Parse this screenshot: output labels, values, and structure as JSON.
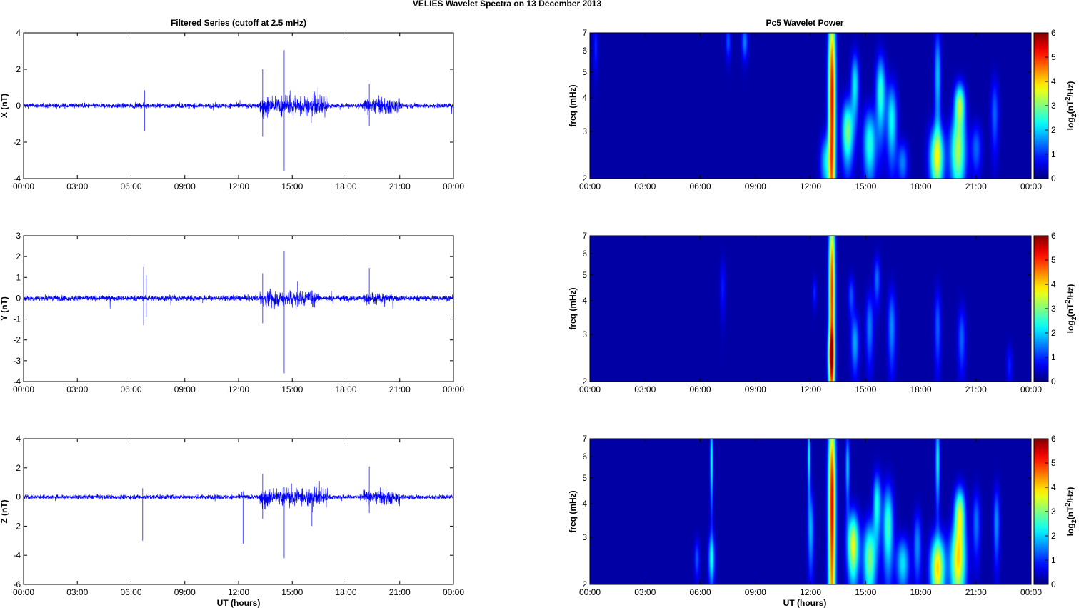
{
  "figure_title": "VELIES Wavelet Spectra on 13 December  2013",
  "left_title": "Filtered Series (cutoff at 2.5 mHz)",
  "right_title": "Pc5 Wavelet Power",
  "x_label": "UT (hours)",
  "x_tick_labels": [
    "00:00",
    "03:00",
    "06:00",
    "09:00",
    "12:00",
    "15:00",
    "18:00",
    "21:00",
    "00:00"
  ],
  "chart_data": [
    {
      "type": "line",
      "ylabel": "X (nT)",
      "xlim": [
        0,
        24
      ],
      "ylim": [
        -4,
        4
      ],
      "yticks": [
        -4,
        -2,
        0,
        2,
        4
      ],
      "color": "#0000ff",
      "noise_amplitude": 0.12,
      "spikes": [
        {
          "x": 6.75,
          "max": 0.85,
          "min": -1.4
        },
        {
          "x": 13.35,
          "max": 2.0,
          "min": -1.7
        },
        {
          "x": 14.55,
          "max": 3.05,
          "min": -3.6
        },
        {
          "x": 19.3,
          "max": 1.2,
          "min": -1.1
        }
      ],
      "active_bursts": [
        {
          "start": 13.2,
          "end": 17.0,
          "amplitude": 0.45
        },
        {
          "start": 19.0,
          "end": 21.0,
          "amplitude": 0.35
        }
      ]
    },
    {
      "type": "line",
      "ylabel": "Y (nT)",
      "xlim": [
        0,
        24
      ],
      "ylim": [
        -4,
        3
      ],
      "yticks": [
        -4,
        -3,
        -2,
        -1,
        0,
        1,
        2,
        3
      ],
      "color": "#0000ff",
      "noise_amplitude": 0.12,
      "spikes": [
        {
          "x": 6.7,
          "max": 1.5,
          "min": -1.3
        },
        {
          "x": 6.85,
          "max": 1.1,
          "min": -0.9
        },
        {
          "x": 13.35,
          "max": 1.2,
          "min": -1.2
        },
        {
          "x": 14.55,
          "max": 2.25,
          "min": -3.6
        },
        {
          "x": 15.3,
          "max": 0.8,
          "min": -0.4
        },
        {
          "x": 19.3,
          "max": 1.45,
          "min": -0.3
        }
      ],
      "active_bursts": [
        {
          "start": 13.2,
          "end": 16.5,
          "amplitude": 0.3
        },
        {
          "start": 19.0,
          "end": 20.5,
          "amplitude": 0.25
        }
      ]
    },
    {
      "type": "line",
      "ylabel": "Z (nT)",
      "xlim": [
        0,
        24
      ],
      "ylim": [
        -6,
        4
      ],
      "yticks": [
        -6,
        -4,
        -2,
        0,
        2,
        4
      ],
      "color": "#0000ff",
      "noise_amplitude": 0.14,
      "spikes": [
        {
          "x": 6.65,
          "max": 0.6,
          "min": -3.0
        },
        {
          "x": 12.25,
          "max": 0.4,
          "min": -3.2
        },
        {
          "x": 13.35,
          "max": 1.6,
          "min": -1.5
        },
        {
          "x": 14.55,
          "max": 0.7,
          "min": -4.2
        },
        {
          "x": 16.1,
          "max": 0.3,
          "min": -2.0
        },
        {
          "x": 19.3,
          "max": 2.1,
          "min": -1.1
        }
      ],
      "active_bursts": [
        {
          "start": 13.2,
          "end": 17.0,
          "amplitude": 0.5
        },
        {
          "start": 19.0,
          "end": 21.0,
          "amplitude": 0.4
        }
      ]
    },
    {
      "type": "heatmap",
      "ylabel": "freq (mHz)",
      "xlim": [
        0,
        24
      ],
      "ylim": [
        2,
        7
      ],
      "yscale": "log",
      "yticks": [
        2,
        3,
        4,
        5,
        6,
        7
      ],
      "colormap": "jet",
      "clim": [
        0,
        6
      ],
      "colorbar_label": "log2(nT^2/Hz)",
      "colorbar_ticks": [
        0,
        1,
        2,
        3,
        4,
        5,
        6
      ],
      "blobs": [
        {
          "t": 0.3,
          "f": 6.2,
          "w": 0.08,
          "h": 1.0,
          "v": 0.9
        },
        {
          "t": 7.5,
          "f": 6.5,
          "w": 0.1,
          "h": 0.7,
          "v": 1.2
        },
        {
          "t": 8.4,
          "f": 6.5,
          "w": 0.12,
          "h": 0.7,
          "v": 1.5
        },
        {
          "t": 13.15,
          "f": 4.0,
          "w": 0.14,
          "h": 3.2,
          "v": 5.8
        },
        {
          "t": 12.8,
          "f": 2.3,
          "w": 0.2,
          "h": 0.4,
          "v": 2.0
        },
        {
          "t": 14.0,
          "f": 3.0,
          "w": 0.22,
          "h": 0.6,
          "v": 3.2
        },
        {
          "t": 14.4,
          "f": 4.5,
          "w": 0.15,
          "h": 0.9,
          "v": 2.3
        },
        {
          "t": 15.2,
          "f": 2.7,
          "w": 0.25,
          "h": 0.6,
          "v": 2.6
        },
        {
          "t": 15.8,
          "f": 4.2,
          "w": 0.18,
          "h": 1.0,
          "v": 2.7
        },
        {
          "t": 16.4,
          "f": 3.3,
          "w": 0.2,
          "h": 0.8,
          "v": 2.4
        },
        {
          "t": 17.0,
          "f": 2.3,
          "w": 0.2,
          "h": 0.3,
          "v": 1.5
        },
        {
          "t": 18.85,
          "f": 2.4,
          "w": 0.28,
          "h": 0.5,
          "v": 3.6
        },
        {
          "t": 18.9,
          "f": 4.8,
          "w": 0.12,
          "h": 1.5,
          "v": 2.0
        },
        {
          "t": 20.0,
          "f": 2.5,
          "w": 0.3,
          "h": 0.6,
          "v": 3.4
        },
        {
          "t": 20.1,
          "f": 3.8,
          "w": 0.2,
          "h": 0.5,
          "v": 3.4
        },
        {
          "t": 21.0,
          "f": 2.6,
          "w": 0.2,
          "h": 0.4,
          "v": 1.3
        },
        {
          "t": 22.0,
          "f": 3.5,
          "w": 0.15,
          "h": 0.8,
          "v": 1.3
        }
      ]
    },
    {
      "type": "heatmap",
      "ylabel": "freq (mHz)",
      "xlim": [
        0,
        24
      ],
      "ylim": [
        2,
        7
      ],
      "yscale": "log",
      "yticks": [
        2,
        3,
        4,
        5,
        6,
        7
      ],
      "colormap": "jet",
      "clim": [
        0,
        6
      ],
      "colorbar_label": "log2(nT^2/Hz)",
      "colorbar_ticks": [
        0,
        1,
        2,
        3,
        4,
        5,
        6
      ],
      "blobs": [
        {
          "t": 7.2,
          "f": 4.5,
          "w": 0.1,
          "h": 0.8,
          "v": 0.8
        },
        {
          "t": 12.2,
          "f": 4.3,
          "w": 0.08,
          "h": 0.4,
          "v": 0.9
        },
        {
          "t": 13.15,
          "f": 4.3,
          "w": 0.12,
          "h": 3.0,
          "v": 5.5
        },
        {
          "t": 13.1,
          "f": 2.5,
          "w": 0.12,
          "h": 0.4,
          "v": 2.8
        },
        {
          "t": 14.4,
          "f": 2.8,
          "w": 0.15,
          "h": 0.5,
          "v": 1.8
        },
        {
          "t": 14.2,
          "f": 4.2,
          "w": 0.12,
          "h": 0.5,
          "v": 1.2
        },
        {
          "t": 15.2,
          "f": 3.2,
          "w": 0.15,
          "h": 0.7,
          "v": 1.5
        },
        {
          "t": 15.6,
          "f": 4.8,
          "w": 0.12,
          "h": 0.7,
          "v": 1.4
        },
        {
          "t": 16.4,
          "f": 3.2,
          "w": 0.15,
          "h": 0.8,
          "v": 1.6
        },
        {
          "t": 18.9,
          "f": 3.2,
          "w": 0.12,
          "h": 0.8,
          "v": 1.3
        },
        {
          "t": 20.2,
          "f": 2.9,
          "w": 0.15,
          "h": 0.6,
          "v": 1.3
        },
        {
          "t": 22.8,
          "f": 2.3,
          "w": 0.12,
          "h": 0.3,
          "v": 0.8
        }
      ]
    },
    {
      "type": "heatmap",
      "ylabel": "freq (mHz)",
      "xlim": [
        0,
        24
      ],
      "ylim": [
        2,
        7
      ],
      "yscale": "log",
      "yticks": [
        2,
        3,
        4,
        5,
        6,
        7
      ],
      "colormap": "jet",
      "clim": [
        0,
        6
      ],
      "colorbar_label": "log2(nT^2/Hz)",
      "colorbar_ticks": [
        0,
        1,
        2,
        3,
        4,
        5,
        6
      ],
      "blobs": [
        {
          "t": 6.6,
          "f": 2.5,
          "w": 0.12,
          "h": 0.4,
          "v": 2.3
        },
        {
          "t": 6.6,
          "f": 5.8,
          "w": 0.06,
          "h": 1.5,
          "v": 2.5
        },
        {
          "t": 5.8,
          "f": 2.5,
          "w": 0.1,
          "h": 0.3,
          "v": 1.2
        },
        {
          "t": 12.0,
          "f": 3.2,
          "w": 0.12,
          "h": 0.8,
          "v": 1.8
        },
        {
          "t": 11.9,
          "f": 6.0,
          "w": 0.06,
          "h": 1.3,
          "v": 2.4
        },
        {
          "t": 13.15,
          "f": 4.0,
          "w": 0.14,
          "h": 3.2,
          "v": 5.9
        },
        {
          "t": 14.3,
          "f": 2.8,
          "w": 0.22,
          "h": 0.6,
          "v": 4.0
        },
        {
          "t": 14.0,
          "f": 5.5,
          "w": 0.08,
          "h": 1.2,
          "v": 2.0
        },
        {
          "t": 15.2,
          "f": 2.5,
          "w": 0.25,
          "h": 0.6,
          "v": 3.2
        },
        {
          "t": 15.6,
          "f": 4.0,
          "w": 0.15,
          "h": 0.8,
          "v": 2.5
        },
        {
          "t": 16.2,
          "f": 3.3,
          "w": 0.2,
          "h": 0.9,
          "v": 2.8
        },
        {
          "t": 17.0,
          "f": 2.4,
          "w": 0.25,
          "h": 0.4,
          "v": 2.2
        },
        {
          "t": 17.8,
          "f": 2.8,
          "w": 0.15,
          "h": 0.6,
          "v": 1.6
        },
        {
          "t": 18.9,
          "f": 2.3,
          "w": 0.28,
          "h": 0.5,
          "v": 4.2
        },
        {
          "t": 18.9,
          "f": 5.8,
          "w": 0.08,
          "h": 1.5,
          "v": 2.4
        },
        {
          "t": 20.0,
          "f": 2.4,
          "w": 0.3,
          "h": 0.6,
          "v": 4.0
        },
        {
          "t": 20.1,
          "f": 3.7,
          "w": 0.2,
          "h": 0.6,
          "v": 3.6
        },
        {
          "t": 21.0,
          "f": 3.4,
          "w": 0.15,
          "h": 0.7,
          "v": 1.4
        },
        {
          "t": 22.1,
          "f": 3.4,
          "w": 0.12,
          "h": 0.8,
          "v": 1.6
        }
      ]
    }
  ]
}
